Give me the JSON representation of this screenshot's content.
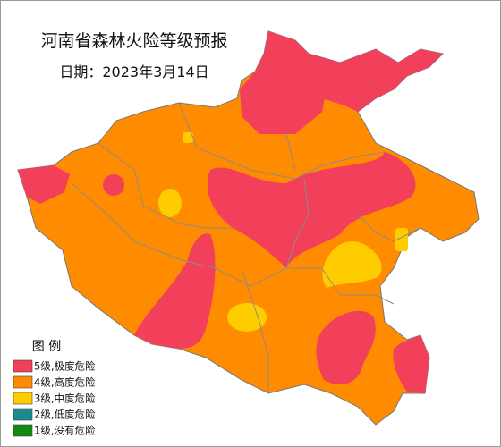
{
  "header": {
    "title": "河南省森林火险等级预报",
    "date": "日期：2023年3月14日"
  },
  "legend": {
    "title": "图  例",
    "items": [
      {
        "label": "5级,极度危险",
        "color": "#f2405b"
      },
      {
        "label": "4级,高度危险",
        "color": "#fe8b00"
      },
      {
        "label": "3级,中度危险",
        "color": "#ffcc00"
      },
      {
        "label": "2级,低度危险",
        "color": "#1b8a8c"
      },
      {
        "label": "1级,没有危险",
        "color": "#108a10"
      }
    ]
  }
}
